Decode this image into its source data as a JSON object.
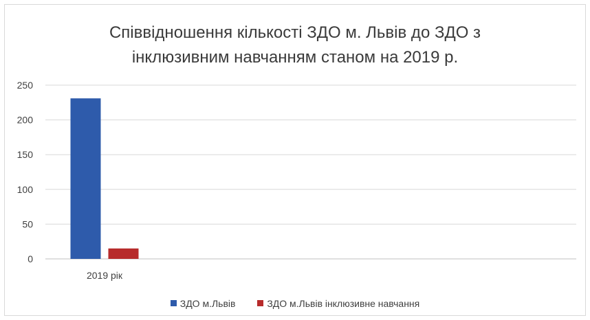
{
  "chart_data": {
    "type": "bar",
    "title_lines": [
      "Співвідношення кількості ЗДО м. Львів до ЗДО з",
      "інклюзивним навчанням станом на 2019 р."
    ],
    "categories": [
      "2019 рік"
    ],
    "series": [
      {
        "name": "ЗДО м.Львів",
        "values": [
          231
        ],
        "color": "#2e5bab"
      },
      {
        "name": "ЗДО м.Львів інклюзивне навчання",
        "values": [
          15
        ],
        "color": "#b72b2b"
      }
    ],
    "ylim": [
      0,
      250
    ],
    "yticks": [
      "0",
      "50",
      "100",
      "150",
      "200",
      "250"
    ],
    "grid": true,
    "legend_position": "bottom"
  }
}
